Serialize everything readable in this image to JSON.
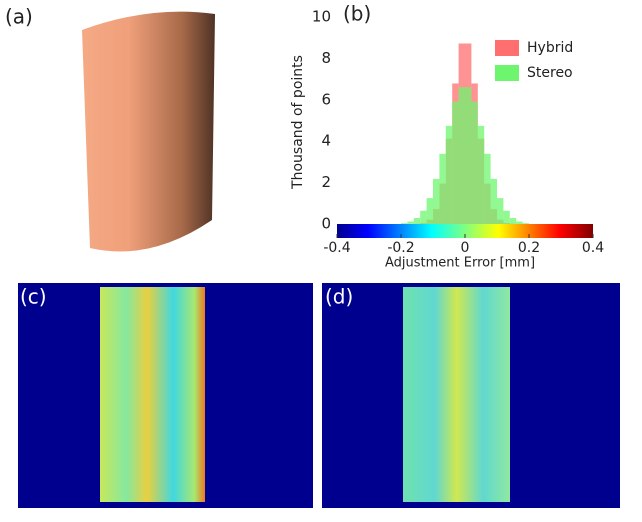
{
  "panel_labels": [
    "(a)",
    "(b)",
    "(c)",
    "(d)"
  ],
  "chart_data": {
    "type": "histogram",
    "xlabel": "Adjustment Error [mm]",
    "ylabel": "Thousand of points",
    "bins": [
      -0.4,
      -0.38,
      -0.36,
      -0.34,
      -0.32,
      -0.3,
      -0.28,
      -0.26,
      -0.24,
      -0.22,
      -0.2,
      -0.18,
      -0.16,
      -0.14,
      -0.12,
      -0.1,
      -0.08,
      -0.06,
      -0.04,
      -0.02,
      0,
      0.02,
      0.04,
      0.06,
      0.08,
      0.1,
      0.12,
      0.14,
      0.16,
      0.18,
      0.2,
      0.22,
      0.24,
      0.26,
      0.28,
      0.3,
      0.32,
      0.34,
      0.36,
      0.38,
      0.4
    ],
    "series": [
      {
        "name": "Hybrid",
        "color": "#ff6f6f",
        "values": [
          0,
          0,
          0,
          0,
          0,
          0,
          0,
          0,
          0,
          0,
          0,
          0,
          0.01,
          0.05,
          0.21,
          0.72,
          1.95,
          4.12,
          6.79,
          8.72,
          8.72,
          6.79,
          4.12,
          1.95,
          0.72,
          0.21,
          0.05,
          0.01,
          0,
          0,
          0,
          0,
          0,
          0,
          0,
          0,
          0,
          0,
          0,
          0
        ]
      },
      {
        "name": "Stereo",
        "color": "#6ef56e",
        "values": [
          0,
          0,
          0,
          0,
          0,
          0,
          0,
          0,
          0,
          0,
          0.04,
          0.12,
          0.29,
          0.64,
          1.25,
          2.18,
          3.39,
          4.74,
          5.91,
          6.61,
          6.61,
          5.91,
          4.74,
          3.39,
          2.18,
          1.25,
          0.64,
          0.29,
          0.12,
          0.04,
          0,
          0,
          0,
          0,
          0,
          0,
          0,
          0,
          0,
          0
        ]
      }
    ],
    "xlim": [
      -0.4,
      0.4
    ],
    "xticks": [
      -0.4,
      -0.2,
      0,
      0.2,
      0.4
    ],
    "ylim": [
      0,
      10
    ],
    "yticks": [
      0,
      2,
      4,
      6,
      8,
      10
    ],
    "legend": "upper-right",
    "colorbar": "jet"
  }
}
